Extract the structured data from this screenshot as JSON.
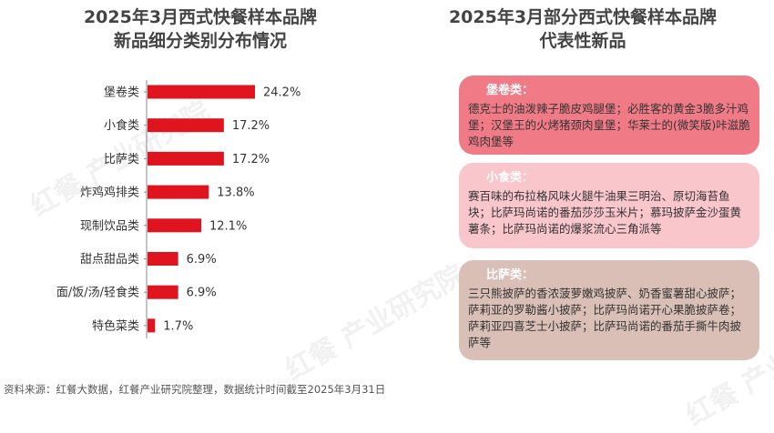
{
  "left_title_line1": "2025年3月西式快餐样本品牌",
  "left_title_line2": "新品细分类别分布情况",
  "right_title_line1": "2025年3月部分西式快餐样本品牌",
  "right_title_line2": "代表性新品",
  "chart_data": {
    "type": "bar",
    "orientation": "horizontal",
    "categories": [
      "堡卷类",
      "小食类",
      "比萨类",
      "炸鸡鸡排类",
      "现制饮品类",
      "甜点甜品类",
      "面/饭/汤/轻食类",
      "特色菜类"
    ],
    "values": [
      24.2,
      17.2,
      17.2,
      13.8,
      12.1,
      6.9,
      6.9,
      1.7
    ],
    "value_labels": [
      "24.2%",
      "17.2%",
      "17.2%",
      "13.8%",
      "12.1%",
      "6.9%",
      "6.9%",
      "1.7%"
    ],
    "bar_color": "#e0141e"
  },
  "cards": {
    "burger": {
      "title": "堡卷类：",
      "text": "德克士的油泼辣子脆皮鸡腿堡；必胜客的黄金3脆多汁鸡堡；汉堡王的火烤猪颈肉皇堡；华莱士的(微笑版)咔滋脆鸡肉堡等"
    },
    "snack": {
      "title": "小食类：",
      "text": "赛百味的布拉格风味火腿牛油果三明治、原切海苔鱼块；比萨玛尚诺的番茄莎莎玉米片；慕玛披萨金沙蛋黄薯条；比萨玛尚诺的爆浆流心三角派等"
    },
    "pizza": {
      "title": "比萨类：",
      "text": "三只熊披萨的香浓菠萝嫩鸡披萨、奶香蜜薯甜心披萨；萨莉亚的罗勒酱小披萨；比萨玛尚诺开心果脆披萨卷；萨莉亚四喜芝士小披萨；比萨玛尚诺的番茄手撕牛肉披萨等"
    }
  },
  "source": "资料来源：红餐大数据，红餐产业研究院整理，数据统计时间截至2025年3月31日",
  "watermark": "红餐 产业研究院"
}
